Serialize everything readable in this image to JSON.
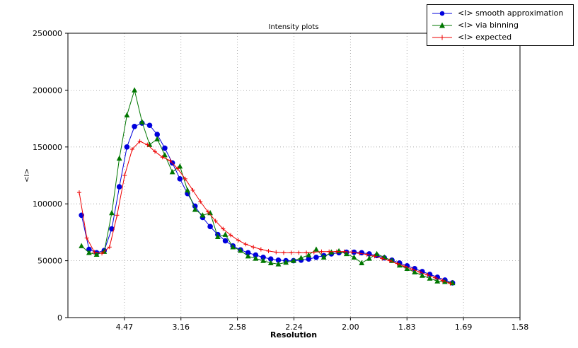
{
  "chart_data": {
    "type": "line",
    "title": "Intensity plots",
    "xlabel": "Resolution",
    "ylabel": "<I>",
    "grid": "dotted",
    "legend_position": "upper right, partly above plot area",
    "x_axis": {
      "min": 0.0,
      "max": 0.4,
      "note": "x values are 1/d^2; tick labels show resolution d",
      "ticks": [
        {
          "pos": 0.05,
          "label": "4.47"
        },
        {
          "pos": 0.1,
          "label": "3.16"
        },
        {
          "pos": 0.15,
          "label": "2.58"
        },
        {
          "pos": 0.2,
          "label": "2.24"
        },
        {
          "pos": 0.25,
          "label": "2.00"
        },
        {
          "pos": 0.3,
          "label": "1.83"
        },
        {
          "pos": 0.35,
          "label": "1.69"
        },
        {
          "pos": 0.4,
          "label": "1.58"
        }
      ]
    },
    "y_axis": {
      "min": 0,
      "max": 250000,
      "ticks": [
        {
          "pos": 0,
          "label": "0"
        },
        {
          "pos": 50000,
          "label": "50000"
        },
        {
          "pos": 100000,
          "label": "100000"
        },
        {
          "pos": 150000,
          "label": "150000"
        },
        {
          "pos": 200000,
          "label": "200000"
        },
        {
          "pos": 250000,
          "label": "250000"
        }
      ]
    },
    "series": [
      {
        "name": "<I> smooth approximation",
        "color": "#0000dd",
        "marker": "circle",
        "x": [
          0.012,
          0.0187,
          0.0254,
          0.0321,
          0.0388,
          0.0455,
          0.0522,
          0.0589,
          0.0656,
          0.0723,
          0.079,
          0.0857,
          0.0924,
          0.0991,
          0.1058,
          0.1125,
          0.1192,
          0.1259,
          0.1326,
          0.1393,
          0.146,
          0.1527,
          0.1594,
          0.1661,
          0.1728,
          0.1795,
          0.1862,
          0.1929,
          0.1996,
          0.2063,
          0.213,
          0.2197,
          0.2264,
          0.2331,
          0.2398,
          0.2465,
          0.2532,
          0.2599,
          0.2666,
          0.2733,
          0.28,
          0.2867,
          0.2934,
          0.3001,
          0.3068,
          0.3135,
          0.3202,
          0.3269,
          0.3336,
          0.3403
        ],
        "y": [
          90000,
          60000,
          57000,
          59000,
          78000,
          115000,
          150000,
          168000,
          171000,
          169000,
          161000,
          149000,
          136000,
          122000,
          109000,
          98000,
          88000,
          80000,
          73000,
          67500,
          63000,
          59500,
          57000,
          55000,
          53000,
          51500,
          50500,
          50000,
          50000,
          50500,
          51500,
          53000,
          54500,
          56000,
          57000,
          57500,
          57500,
          57000,
          56000,
          54500,
          52500,
          50500,
          48000,
          45500,
          43000,
          40500,
          38000,
          35500,
          33000,
          30500
        ]
      },
      {
        "name": "<I> via binning",
        "color": "#007700",
        "marker": "triangle",
        "x": [
          0.012,
          0.0187,
          0.0254,
          0.0321,
          0.0388,
          0.0455,
          0.0522,
          0.0589,
          0.0656,
          0.0723,
          0.079,
          0.0857,
          0.0924,
          0.0991,
          0.1058,
          0.1125,
          0.1192,
          0.1259,
          0.1326,
          0.1393,
          0.146,
          0.1527,
          0.1594,
          0.1661,
          0.1728,
          0.1795,
          0.1862,
          0.1929,
          0.1996,
          0.2063,
          0.213,
          0.2197,
          0.2264,
          0.2331,
          0.2398,
          0.2465,
          0.2532,
          0.2599,
          0.2666,
          0.2733,
          0.28,
          0.2867,
          0.2934,
          0.3001,
          0.3068,
          0.3135,
          0.3202,
          0.3269,
          0.3336,
          0.3403
        ],
        "y": [
          63000,
          57000,
          55500,
          58000,
          92000,
          140000,
          178000,
          200000,
          172000,
          152000,
          157000,
          143000,
          128000,
          133000,
          112000,
          95000,
          90000,
          92000,
          71000,
          73000,
          62000,
          59000,
          54000,
          52000,
          50000,
          48000,
          47000,
          48500,
          50000,
          52500,
          55000,
          60000,
          53000,
          57500,
          58500,
          56000,
          53000,
          48000,
          52000,
          56000,
          53000,
          50000,
          46000,
          43000,
          40000,
          37000,
          34500,
          32000,
          31500,
          30500
        ]
      },
      {
        "name": "<I> expected",
        "color": "#ee0000",
        "marker": "plus",
        "x": [
          0.01,
          0.0167,
          0.0234,
          0.0301,
          0.0368,
          0.0435,
          0.0502,
          0.0569,
          0.0636,
          0.0703,
          0.077,
          0.0837,
          0.0904,
          0.0971,
          0.1038,
          0.1105,
          0.1172,
          0.1239,
          0.1306,
          0.1373,
          0.144,
          0.1507,
          0.1574,
          0.1641,
          0.1708,
          0.1775,
          0.1842,
          0.1909,
          0.1976,
          0.2043,
          0.211,
          0.2177,
          0.2244,
          0.2311,
          0.2378,
          0.2445,
          0.2512,
          0.2579,
          0.2646,
          0.2713,
          0.278,
          0.2847,
          0.2914,
          0.2981,
          0.3048,
          0.3115,
          0.3182,
          0.3249,
          0.3316,
          0.3383
        ],
        "y": [
          110000,
          70000,
          57500,
          56500,
          62000,
          90000,
          125000,
          148000,
          155000,
          152000,
          146000,
          141000,
          138000,
          131000,
          122000,
          112000,
          102000,
          93000,
          85000,
          78000,
          72500,
          68000,
          64500,
          62000,
          60000,
          58500,
          57500,
          57000,
          57000,
          57000,
          57000,
          57500,
          58000,
          58000,
          58000,
          58000,
          57500,
          56500,
          55500,
          54000,
          52000,
          50000,
          47500,
          45000,
          42500,
          40000,
          37500,
          35000,
          32500,
          30000
        ]
      }
    ]
  }
}
